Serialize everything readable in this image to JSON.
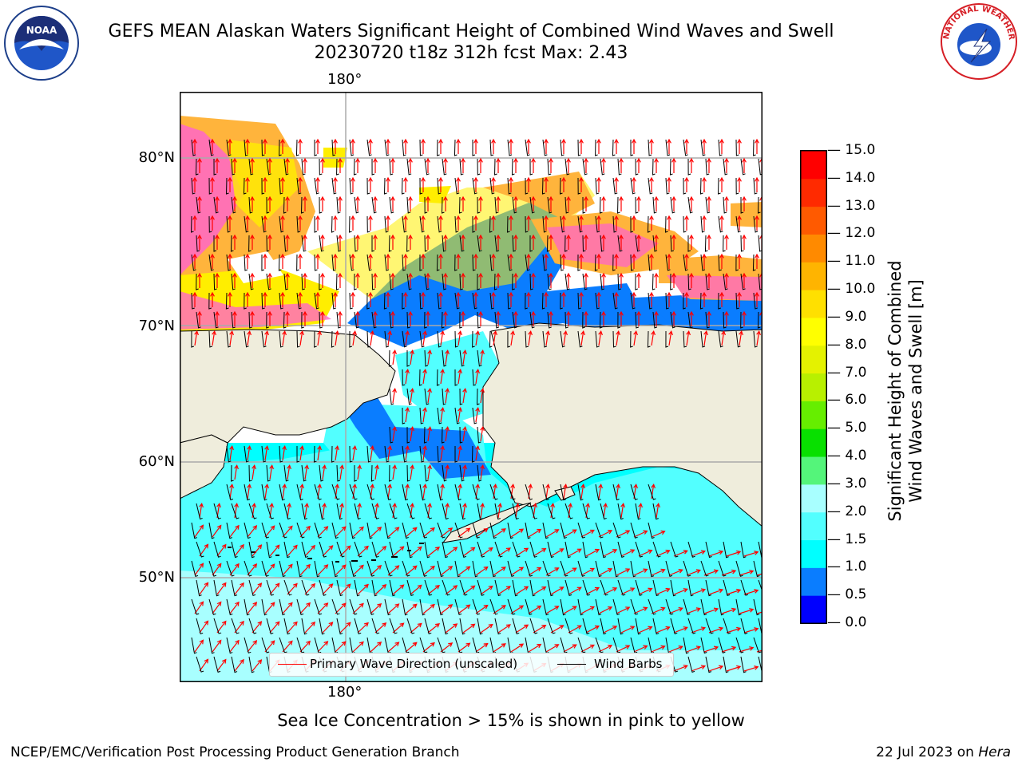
{
  "header": {
    "title_line1": "GEFS MEAN Alaskan Waters Significant Height of Combined Wind Waves and Swell",
    "title_line2": "20230720 t18z 312h fcst   Max: 2.43"
  },
  "logos": {
    "noaa_text": "NOAA",
    "nws_ring_text": "NATIONAL WEATHER SERVICE"
  },
  "map": {
    "lon_top": "180°",
    "lon_bottom": "180°",
    "lat_labels": [
      "80°N",
      "70°N",
      "60°N",
      "50°N"
    ],
    "colors": {
      "land": "#efeddc",
      "ocean_cyan": "#00ffff",
      "ocean_light": "#5cffff",
      "ocean_blue": "#0a7dff",
      "ice_pink": "#ff66c8",
      "ice_yellow": "#ffee00",
      "ice_orange": "#ffb43c"
    }
  },
  "legend": {
    "wave_label": "Primary Wave Direction (unscaled)",
    "wind_label": "Wind Barbs",
    "wave_color": "#ff0000",
    "wind_color": "#000000"
  },
  "colorbar": {
    "label_line1": "Significant Height of Combined",
    "label_line2": "Wind Waves and Swell [m]",
    "ticks": [
      "0.0",
      "0.5",
      "1.0",
      "1.5",
      "2.0",
      "3.0",
      "4.0",
      "5.0",
      "6.0",
      "7.0",
      "8.0",
      "9.0",
      "10.0",
      "11.0",
      "12.0",
      "13.0",
      "14.0",
      "15.0"
    ],
    "colors": [
      "#0000ff",
      "#0a7dff",
      "#00ffff",
      "#52ffff",
      "#a8ffff",
      "#54f57a",
      "#08e000",
      "#66ee00",
      "#b8f000",
      "#e4f200",
      "#ffff00",
      "#ffe000",
      "#ffb400",
      "#ff8a00",
      "#ff5a00",
      "#ff2a00",
      "#ff0000"
    ]
  },
  "footer": {
    "note": "Sea Ice Concentration > 15% is shown in pink to yellow",
    "credit": "NCEP/EMC/Verification Post Processing Product Generation Branch",
    "date": "22 Jul 2023 on ",
    "host": "Hera"
  }
}
